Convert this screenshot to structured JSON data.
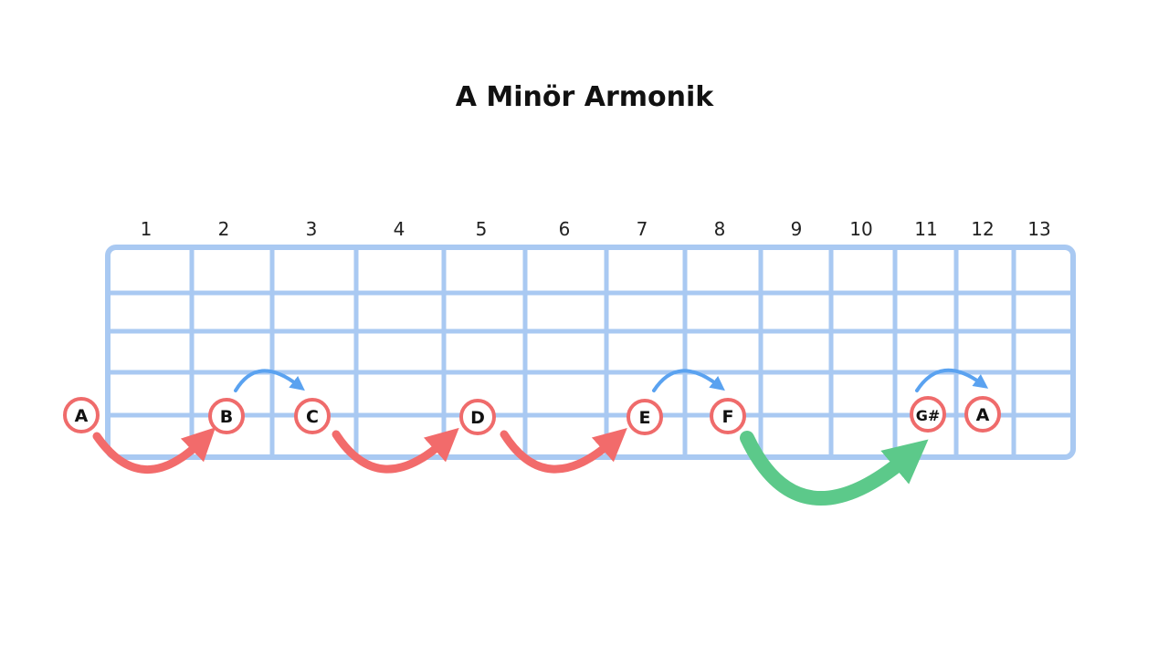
{
  "title": "A Minör Armonik",
  "frets": [
    "1",
    "2",
    "3",
    "4",
    "5",
    "6",
    "7",
    "8",
    "9",
    "10",
    "11",
    "12",
    "13"
  ],
  "notes": [
    "A",
    "B",
    "C",
    "D",
    "E",
    "F",
    "G#",
    "A"
  ]
}
